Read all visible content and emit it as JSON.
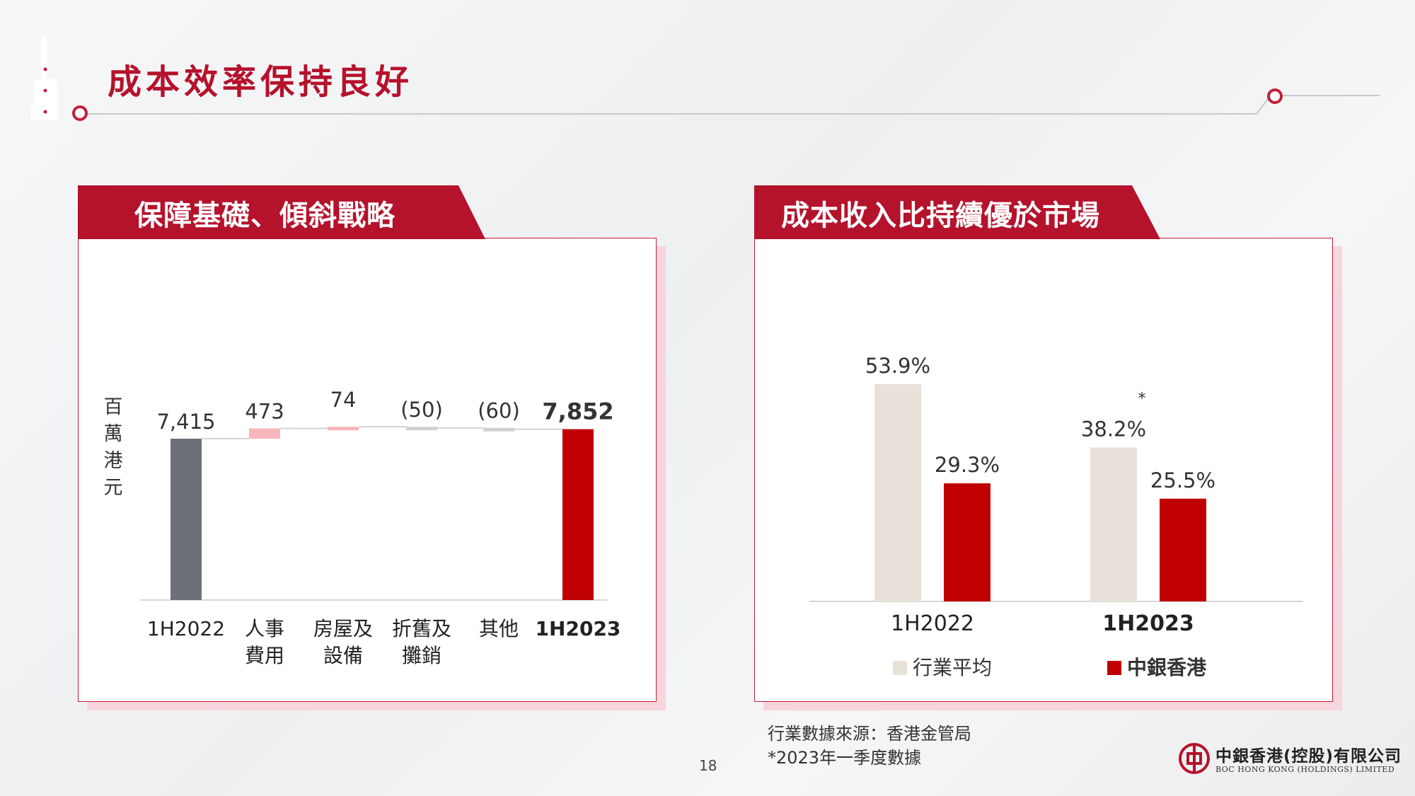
{
  "header": {
    "title": "成本效率保持良好"
  },
  "left_panel": {
    "title": "保障基礎、傾斜戰略"
  },
  "right_panel": {
    "title": "成本收入比持續優於市場"
  },
  "chart_data": [
    {
      "type": "waterfall",
      "ylabel": "百萬港元",
      "categories": [
        "1H2022",
        "人事費用",
        "房屋及設備",
        "折舊及攤銷",
        "其他",
        "1H2023"
      ],
      "category_lines": [
        [
          "1H2022"
        ],
        [
          "人事",
          "費用"
        ],
        [
          "房屋及",
          "設備"
        ],
        [
          "折舊及",
          "攤銷"
        ],
        [
          "其他"
        ],
        [
          "1H2023"
        ]
      ],
      "values": [
        7415,
        473,
        74,
        -50,
        -60,
        7852
      ],
      "data_labels": [
        "7,415",
        "473",
        "74",
        "(50)",
        "(60)",
        "7,852"
      ],
      "kinds": [
        "total",
        "increase",
        "increase",
        "decrease",
        "decrease",
        "total"
      ],
      "colors": {
        "total_start": "#6c7178",
        "increase": "#f7b6bb",
        "decrease": "#d0d0d0",
        "total_end": "#c00000"
      }
    },
    {
      "type": "bar",
      "categories": [
        "1H2022",
        "1H2023"
      ],
      "series": [
        {
          "name": "行業平均",
          "values": [
            53.9,
            38.2
          ],
          "labels": [
            "53.9%",
            "38.2%"
          ],
          "color": "#e8e1d9"
        },
        {
          "name": "中銀香港",
          "values": [
            29.3,
            25.5
          ],
          "labels": [
            "29.3%",
            "25.5%"
          ],
          "color": "#c00000"
        }
      ],
      "annotation": "*",
      "legend": "bottom"
    }
  ],
  "footer": {
    "source_line1": "行業數據來源：香港金管局",
    "source_line2": "*2023年一季度數據",
    "page_number": "18",
    "logo_cn": "中銀香港(控股)有限公司",
    "logo_en": "BOC HONG KONG (HOLDINGS) LIMITED",
    "logo_icon": "boc-logo-icon"
  }
}
